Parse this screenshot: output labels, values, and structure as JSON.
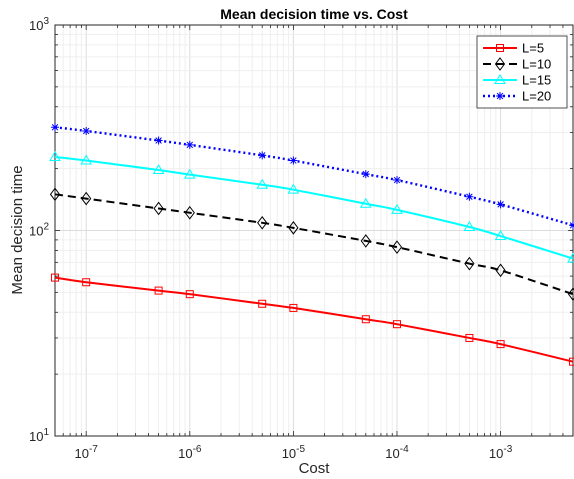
{
  "chart_data": {
    "type": "line",
    "title": "Mean decision time vs. Cost",
    "xlabel": "Cost",
    "ylabel": "Mean decision time",
    "xscale": "log",
    "yscale": "log",
    "xlim": [
      5e-08,
      0.005
    ],
    "ylim": [
      10,
      1000
    ],
    "grid": true,
    "minor_grid": true,
    "legend_position": "top-right",
    "xticks": [
      {
        "value": 1e-07,
        "base": "10",
        "exp": "-7"
      },
      {
        "value": 1e-06,
        "base": "10",
        "exp": "-6"
      },
      {
        "value": 1e-05,
        "base": "10",
        "exp": "-5"
      },
      {
        "value": 0.0001,
        "base": "10",
        "exp": "-4"
      },
      {
        "value": 0.001,
        "base": "10",
        "exp": "-3"
      }
    ],
    "yticks": [
      {
        "value": 10,
        "base": "10",
        "exp": "1"
      },
      {
        "value": 100,
        "base": "10",
        "exp": "2"
      },
      {
        "value": 1000,
        "base": "10",
        "exp": "3"
      }
    ],
    "x": [
      5e-08,
      1e-07,
      5e-07,
      1e-06,
      5e-06,
      1e-05,
      5e-05,
      0.0001,
      0.0005,
      0.001,
      0.005
    ],
    "series": [
      {
        "name": "L=5",
        "color": "#ff0000",
        "dash": "solid",
        "marker": "square",
        "values": [
          59,
          56,
          51,
          49,
          44,
          42,
          37,
          35,
          30,
          28,
          23
        ]
      },
      {
        "name": "L=10",
        "color": "#000000",
        "dash": "dashed",
        "marker": "diamond",
        "values": [
          150,
          143,
          128,
          122,
          109,
          103,
          89,
          83,
          69,
          64,
          49
        ]
      },
      {
        "name": "L=15",
        "color": "#00ffff",
        "dash": "solid",
        "marker": "triangle",
        "values": [
          228,
          219,
          197,
          187,
          167,
          158,
          135,
          126,
          104,
          94,
          73
        ]
      },
      {
        "name": "L=20",
        "color": "#0000ff",
        "dash": "dotted",
        "marker": "star",
        "values": [
          318,
          305,
          274,
          261,
          232,
          219,
          188,
          176,
          146,
          134,
          106
        ]
      }
    ]
  }
}
